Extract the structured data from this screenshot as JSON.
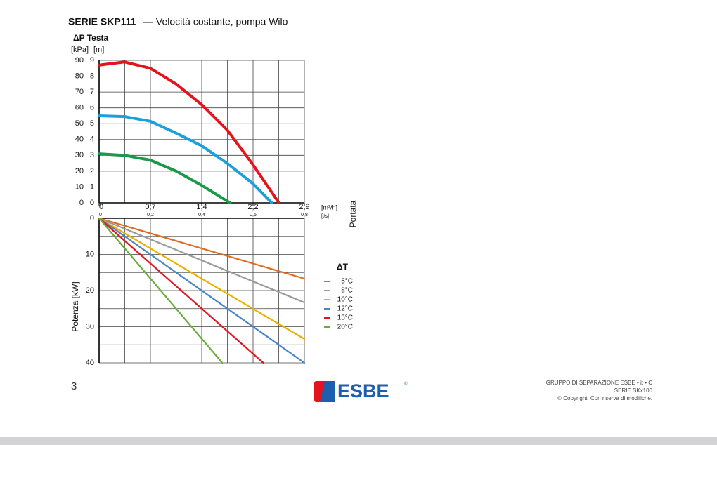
{
  "header": {
    "series": "SERIE SKP111",
    "subtitle": "— Velocità costante, pompa Wilo"
  },
  "chart_data": [
    {
      "type": "line",
      "title": "ΔP Testa",
      "ylabel": "[kPa]",
      "y2label": "[m]",
      "xlabel": "[m³/h]",
      "x2label": "[l/s]",
      "xtitle": "Portata",
      "xlim": [
        0,
        2.9
      ],
      "xticks": [
        0,
        {
          "value": 0.725,
          "label": "0,7"
        },
        {
          "value": 1.45,
          "label": "1,4"
        },
        {
          "value": 2.175,
          "label": "2,2"
        },
        {
          "value": 2.9,
          "label": "2,9"
        }
      ],
      "x2lim": [
        0,
        0.8
      ],
      "x2ticks": [
        0,
        {
          "value": 0.2,
          "label": "0,2"
        },
        {
          "value": 0.4,
          "label": "0,4"
        },
        {
          "value": 0.6,
          "label": "0,6"
        },
        {
          "value": 0.8,
          "label": "0,8"
        }
      ],
      "ylim": [
        0,
        90
      ],
      "yticks": [
        0,
        10,
        20,
        30,
        40,
        50,
        60,
        70,
        80,
        90
      ],
      "y2lim": [
        0,
        9
      ],
      "y2ticks": [
        0,
        1,
        2,
        3,
        4,
        5,
        6,
        7,
        8,
        9
      ],
      "grid": true,
      "series": [
        {
          "color": "#e3141d",
          "x": [
            0,
            0.36,
            0.725,
            1.09,
            1.45,
            1.81,
            2.175,
            2.54
          ],
          "values": [
            87,
            89,
            85,
            75,
            62,
            46,
            24,
            0
          ]
        },
        {
          "color": "#1ba0dc",
          "x": [
            0,
            0.36,
            0.725,
            1.09,
            1.45,
            1.81,
            2.175,
            2.44
          ],
          "values": [
            55,
            54.5,
            51.5,
            44,
            36,
            25,
            12,
            0
          ]
        },
        {
          "color": "#1a9a48",
          "x": [
            0,
            0.36,
            0.725,
            1.09,
            1.45,
            1.85
          ],
          "values": [
            31,
            30,
            27,
            20,
            11,
            0
          ]
        }
      ]
    },
    {
      "type": "line",
      "ylabel": "Potenza [kW]",
      "legend_title": "ΔT",
      "xlim": [
        0,
        2.9
      ],
      "ylim": [
        0,
        40
      ],
      "yticks": [
        0,
        10,
        20,
        30,
        40
      ],
      "y_inverted": true,
      "grid": true,
      "series": [
        {
          "name": "5°C",
          "color": "#e06a1f",
          "x": [
            0,
            2.9
          ],
          "values": [
            0,
            16.7
          ]
        },
        {
          "name": "8°C",
          "color": "#9a9a9a",
          "x": [
            0,
            2.9
          ],
          "values": [
            0,
            23.3
          ]
        },
        {
          "name": "10°C",
          "color": "#e8b100",
          "x": [
            0,
            2.9
          ],
          "values": [
            0,
            33.4
          ]
        },
        {
          "name": "12°C",
          "color": "#4a85c5",
          "x": [
            0,
            2.9
          ],
          "values": [
            0,
            40
          ]
        },
        {
          "name": "15°C",
          "color": "#e3141d",
          "x": [
            0,
            2.32
          ],
          "values": [
            0,
            40
          ]
        },
        {
          "name": "20°C",
          "color": "#6aac3c",
          "x": [
            0,
            1.74
          ],
          "values": [
            0,
            40
          ]
        }
      ]
    }
  ],
  "footer": {
    "page": "3",
    "logo": "ESBE",
    "logo_mark": "®",
    "lines": [
      "GRUPPO DI SEPARAZIONE ESBE • it • C",
      "SERIE SKx100",
      "© Copyright. Con riserva di modifiche."
    ]
  }
}
